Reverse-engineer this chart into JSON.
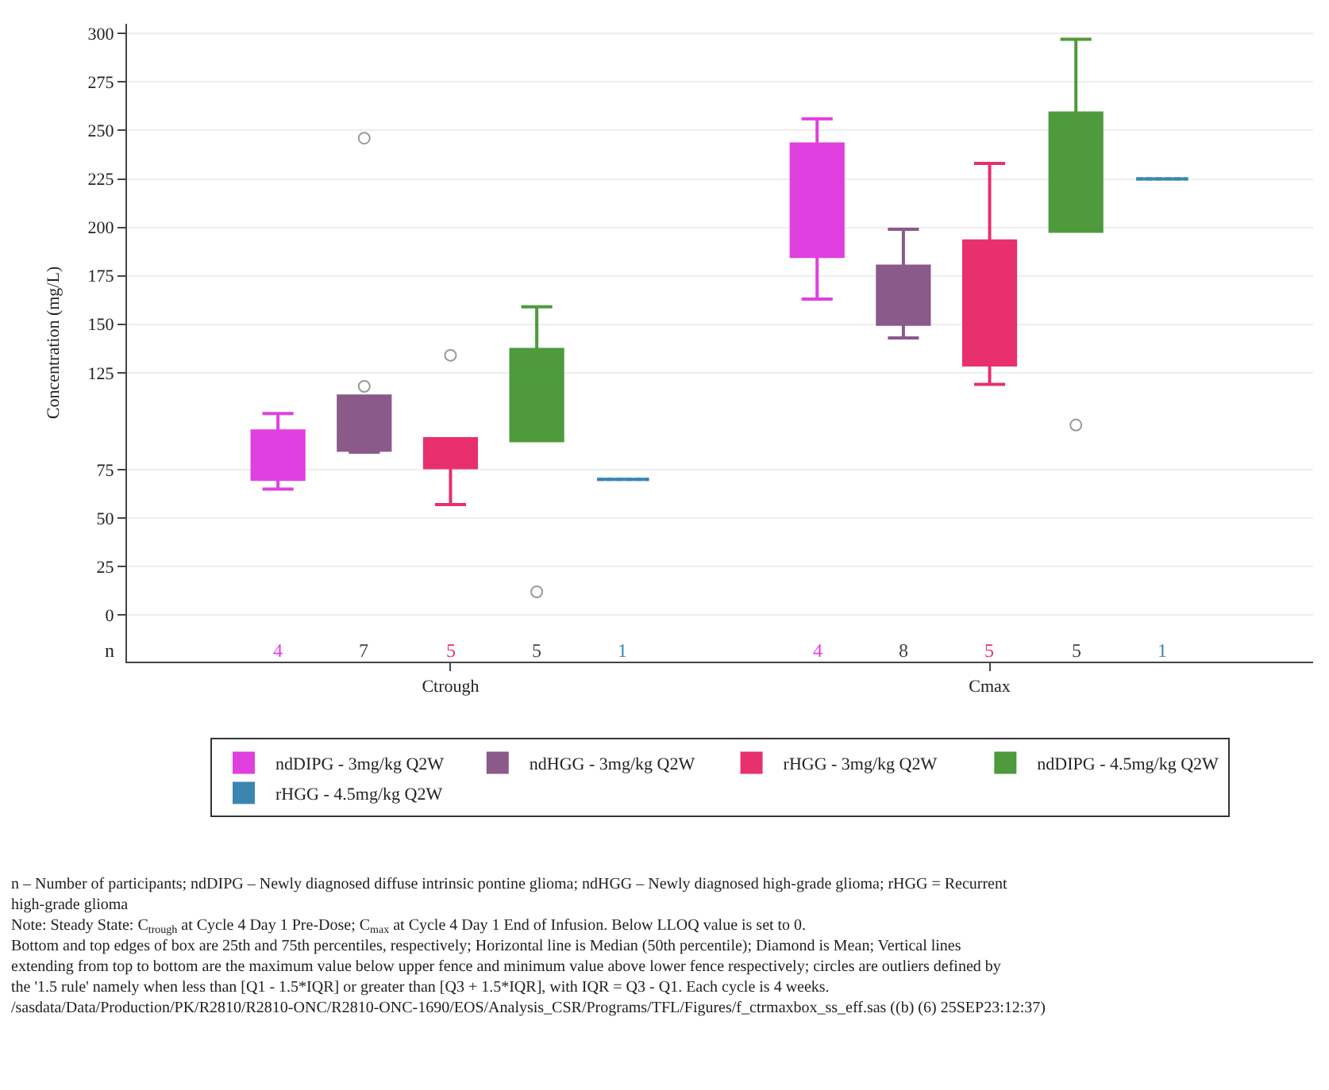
{
  "chart_data": {
    "type": "box",
    "ylabel": "Concentration (mg/L)",
    "categories": [
      "Ctrough",
      "Cmax"
    ],
    "ylim": [
      -24,
      305
    ],
    "yticks": [
      0,
      25,
      50,
      75,
      125,
      150,
      175,
      200,
      225,
      250,
      275,
      300
    ],
    "grid": "y",
    "legend": "bottom",
    "series": [
      {
        "name": "ndDIPG - 3mg/kg Q2W",
        "color": "#e040e0",
        "boxes": [
          {
            "low": 65,
            "q1": 70,
            "median": 83,
            "q3": 95,
            "high": 104
          },
          {
            "low": 163,
            "q1": 185,
            "median": 220,
            "q3": 243,
            "high": 256
          }
        ]
      },
      {
        "name": "ndHGG - 3mg/kg Q2W",
        "color": "#8a5a8a",
        "boxes": [
          {
            "low": 84,
            "q1": 85,
            "median": 95,
            "q3": 113,
            "high": 113,
            "outliers": [
              118,
              246
            ]
          },
          {
            "low": 143,
            "q1": 150,
            "median": 165,
            "q3": 180,
            "high": 199
          }
        ]
      },
      {
        "name": "rHGG - 3mg/kg Q2W",
        "color": "#e8306e",
        "boxes": [
          {
            "low": 57,
            "q1": 76,
            "median": 79,
            "q3": 91,
            "high": 91,
            "outliers": [
              134
            ]
          },
          {
            "low": 119,
            "q1": 129,
            "median": 179,
            "q3": 193,
            "high": 233
          }
        ]
      },
      {
        "name": "ndDIPG - 4.5mg/kg Q2W",
        "color": "#4e9a3c",
        "boxes": [
          {
            "low": 90,
            "q1": 90,
            "median": 122,
            "q3": 137,
            "high": 159,
            "outliers": [
              12
            ]
          },
          {
            "low": 198,
            "q1": 198,
            "median": 208,
            "q3": 259,
            "high": 297,
            "outliers": [
              98
            ]
          }
        ]
      },
      {
        "name": "rHGG - 4.5mg/kg Q2W",
        "color": "#3a86b0",
        "boxes": [
          {
            "low": 70,
            "q1": 70,
            "median": 70,
            "q3": 70,
            "high": 70,
            "mean": 70
          },
          {
            "low": 225,
            "q1": 225,
            "median": 225,
            "q3": 225,
            "high": 225,
            "mean": 225
          }
        ]
      }
    ],
    "annotations": [
      "n",
      "4",
      "7",
      "5",
      "5",
      "1",
      "4",
      "8",
      "5",
      "5",
      "1",
      "n – Number of participants; ndDIPG – Newly diagnosed diffuse intrinsic pontine glioma; ndHGG – Newly diagnosed high-grade glioma; rHGG = Recurrent high-grade glioma",
      "Note: Steady State: C$_{trough}$ at Cycle 4 Day 1 Pre-Dose; C$_{max}$ at Cycle 4 Day 1 End of Infusion. Below LLOQ value is set to 0.",
      "Bottom and top edges of box are 25th and 75th percentiles, respectively; Horizontal line is Median (50th percentile); Diamond is Mean; Vertical lines extending from top to bottom are the maximum value below upper fence and minimum value above lower fence respectively; circles are outliers defined by the '1.5 rule' namely when less than [Q1 - 1.5*IQR] or greater than [Q3 + 1.5*IQR], with IQR = Q3 - Q1. Each cycle is 4 weeks.",
      "/sasdata/Data/Production/PK/R2810/R2810-ONC/R2810-ONC-1690/EOS/Analysis_CSR/Programs/TFL/Figures/f_ctrmaxbox_ss_eff.sas ((b) (6) 25SEP23:12:37)"
    ]
  }
}
